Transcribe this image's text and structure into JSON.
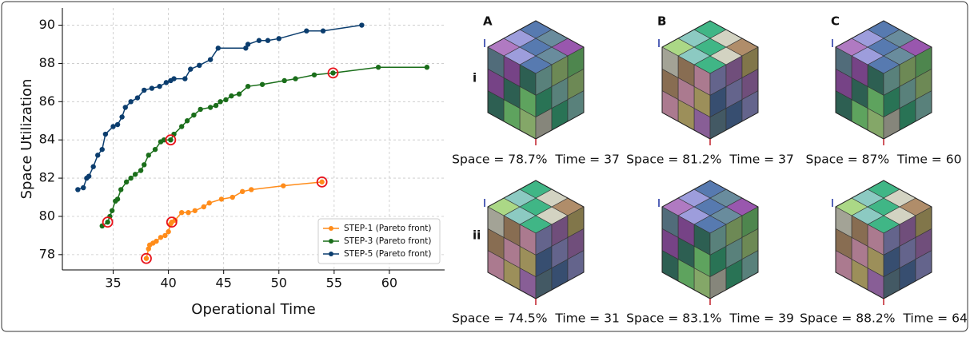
{
  "chart_data": {
    "type": "line",
    "xlabel": "Operational Time",
    "ylabel": "Space Utilization",
    "xlim": [
      30.4,
      65
    ],
    "ylim": [
      77.2,
      90.9
    ],
    "xticks": [
      35,
      40,
      45,
      50,
      55,
      60
    ],
    "yticks": [
      78,
      80,
      82,
      84,
      86,
      88,
      90
    ],
    "grid": true,
    "legend": "lower right",
    "series": [
      {
        "name": "STEP-1 (Pareto front)",
        "color": "#ff8c1a",
        "x": [
          38.0,
          38.2,
          38.3,
          38.6,
          38.9,
          39.3,
          39.7,
          40.0,
          40.2,
          40.3,
          40.6,
          41.2,
          41.8,
          42.4,
          43.2,
          43.7,
          44.8,
          45.8,
          46.7,
          47.5,
          50.4,
          53.9
        ],
        "values": [
          77.8,
          78.3,
          78.5,
          78.6,
          78.7,
          78.9,
          79.0,
          79.2,
          79.6,
          79.7,
          79.8,
          80.2,
          80.2,
          80.3,
          80.5,
          80.7,
          80.9,
          81.0,
          81.3,
          81.4,
          81.6,
          81.8
        ]
      },
      {
        "name": "STEP-3 (Pareto front)",
        "color": "#1a6e1a",
        "x": [
          34.0,
          34.5,
          34.7,
          34.9,
          35.2,
          35.4,
          35.7,
          36.2,
          36.6,
          37.0,
          37.5,
          37.8,
          38.2,
          38.8,
          39.3,
          39.6,
          40.2,
          40.5,
          41.2,
          41.7,
          42.3,
          42.9,
          43.8,
          44.3,
          44.7,
          45.2,
          45.7,
          46.4,
          47.2,
          48.5,
          50.5,
          51.5,
          53.2,
          54.9,
          59.0,
          63.4
        ],
        "values": [
          79.5,
          79.7,
          80.0,
          80.3,
          80.8,
          80.9,
          81.4,
          81.8,
          82.0,
          82.2,
          82.4,
          82.7,
          83.2,
          83.5,
          83.9,
          84.0,
          84.0,
          84.3,
          84.7,
          85.0,
          85.3,
          85.6,
          85.7,
          85.8,
          86.0,
          86.1,
          86.3,
          86.4,
          86.8,
          86.9,
          87.1,
          87.2,
          87.4,
          87.5,
          87.8,
          87.8
        ]
      },
      {
        "name": "STEP-5 (Pareto front)",
        "color": "#0b3d6e",
        "x": [
          31.8,
          32.3,
          32.6,
          32.8,
          33.2,
          33.6,
          34.0,
          34.3,
          35.0,
          35.4,
          35.8,
          36.1,
          36.6,
          37.2,
          37.8,
          38.5,
          39.2,
          39.8,
          40.2,
          40.5,
          41.5,
          42.0,
          42.8,
          43.8,
          44.5,
          47.0,
          47.2,
          48.2,
          49.0,
          50.0,
          52.5,
          54.0,
          57.5
        ],
        "values": [
          81.4,
          81.5,
          82.0,
          82.1,
          82.6,
          83.2,
          83.5,
          84.3,
          84.7,
          84.8,
          85.2,
          85.7,
          86.0,
          86.2,
          86.6,
          86.7,
          86.8,
          87.0,
          87.1,
          87.2,
          87.2,
          87.7,
          87.9,
          88.2,
          88.8,
          88.8,
          89.0,
          89.2,
          89.2,
          89.3,
          89.7,
          89.7,
          90.0
        ]
      }
    ],
    "highlights": {
      "color": "#e8141c",
      "x": [
        38.0,
        40.3,
        34.5,
        40.2,
        53.9,
        54.9
      ],
      "values": [
        77.8,
        79.7,
        79.7,
        84.0,
        81.8,
        87.5
      ]
    }
  },
  "panels": {
    "columns": [
      "A",
      "B",
      "C"
    ],
    "rows": [
      "i",
      "ii"
    ],
    "captions": [
      [
        "Space = 78.7%  Time = 37",
        "Space = 81.2%  Time = 37",
        "Space = 87%  Time = 60"
      ],
      [
        "Space = 74.5%  Time = 31",
        "Space = 83.1%  Time = 39",
        "Space = 88.2%  Time = 64"
      ]
    ]
  }
}
